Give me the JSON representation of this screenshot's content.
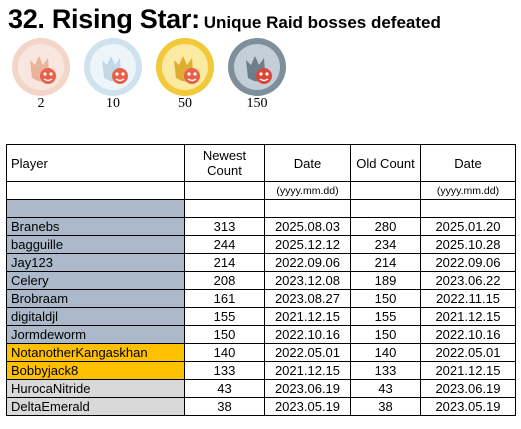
{
  "title": {
    "main": "32. Rising Star:",
    "sub": "Unique Raid bosses defeated"
  },
  "medals": [
    {
      "value": "2",
      "tier": "bronze",
      "icon": "pokemon-badge-icon",
      "ring": "#f3d6c8",
      "face": "#f9e7df",
      "figure": "#e8a98f",
      "emblem": "#e8604a"
    },
    {
      "value": "10",
      "tier": "silver",
      "icon": "pokemon-badge-icon",
      "ring": "#cfe3ee",
      "face": "#eef5f9",
      "figure": "#b8d3e2",
      "emblem": "#e8604a"
    },
    {
      "value": "50",
      "tier": "gold",
      "icon": "pokemon-badge-icon",
      "ring": "#f1c93a",
      "face": "#fbeaa1",
      "figure": "#d9a21e",
      "emblem": "#e8604a"
    },
    {
      "value": "150",
      "tier": "platinum",
      "icon": "pokemon-badge-icon",
      "ring": "#7e8f9c",
      "face": "#c4ced6",
      "figure": "#5f6f7c",
      "emblem": "#d9473a"
    }
  ],
  "table": {
    "headers": {
      "player": "Player",
      "newest_count": "Newest Count",
      "date": "Date",
      "old_count": "Old Count",
      "old_date": "Date"
    },
    "units": {
      "date": "(yyyy.mm.dd)",
      "old_date": "(yyyy.mm.dd)"
    },
    "rows": [
      {
        "player": "Branebs",
        "newest": "313",
        "date": "2025.08.03",
        "old": "280",
        "old_date": "2025.01.20",
        "color": "gray"
      },
      {
        "player": "bagguille",
        "newest": "244",
        "date": "2025.12.12",
        "old": "234",
        "old_date": "2025.10.28",
        "color": "gray"
      },
      {
        "player": "Jay123",
        "newest": "214",
        "date": "2022.09.06",
        "old": "214",
        "old_date": "2022.09.06",
        "color": "gray"
      },
      {
        "player": "Celery",
        "newest": "208",
        "date": "2023.12.08",
        "old": "189",
        "old_date": "2023.06.22",
        "color": "gray"
      },
      {
        "player": "Brobraam",
        "newest": "161",
        "date": "2023.08.27",
        "old": "150",
        "old_date": "2022.11.15",
        "color": "gray"
      },
      {
        "player": "digitaldjl",
        "newest": "155",
        "date": "2021.12.15",
        "old": "155",
        "old_date": "2021.12.15",
        "color": "gray"
      },
      {
        "player": "Jormdeworm",
        "newest": "150",
        "date": "2022.10.16",
        "old": "150",
        "old_date": "2022.10.16",
        "color": "gray"
      },
      {
        "player": "NotanotherKangaskhan",
        "newest": "140",
        "date": "2022.05.01",
        "old": "140",
        "old_date": "2022.05.01",
        "color": "gold"
      },
      {
        "player": "Bobbyjack8",
        "newest": "133",
        "date": "2021.12.15",
        "old": "133",
        "old_date": "2021.12.15",
        "color": "gold"
      },
      {
        "player": "HurocaNitride",
        "newest": "43",
        "date": "2023.06.19",
        "old": "43",
        "old_date": "2023.06.19",
        "color": "light"
      },
      {
        "player": "DeltaEmerald",
        "newest": "38",
        "date": "2023.05.19",
        "old": "38",
        "old_date": "2023.05.19",
        "color": "light"
      }
    ]
  },
  "colors": {
    "tier_gray": "#acb9ca",
    "tier_gold": "#ffc000",
    "tier_light": "#d9d9d9"
  }
}
